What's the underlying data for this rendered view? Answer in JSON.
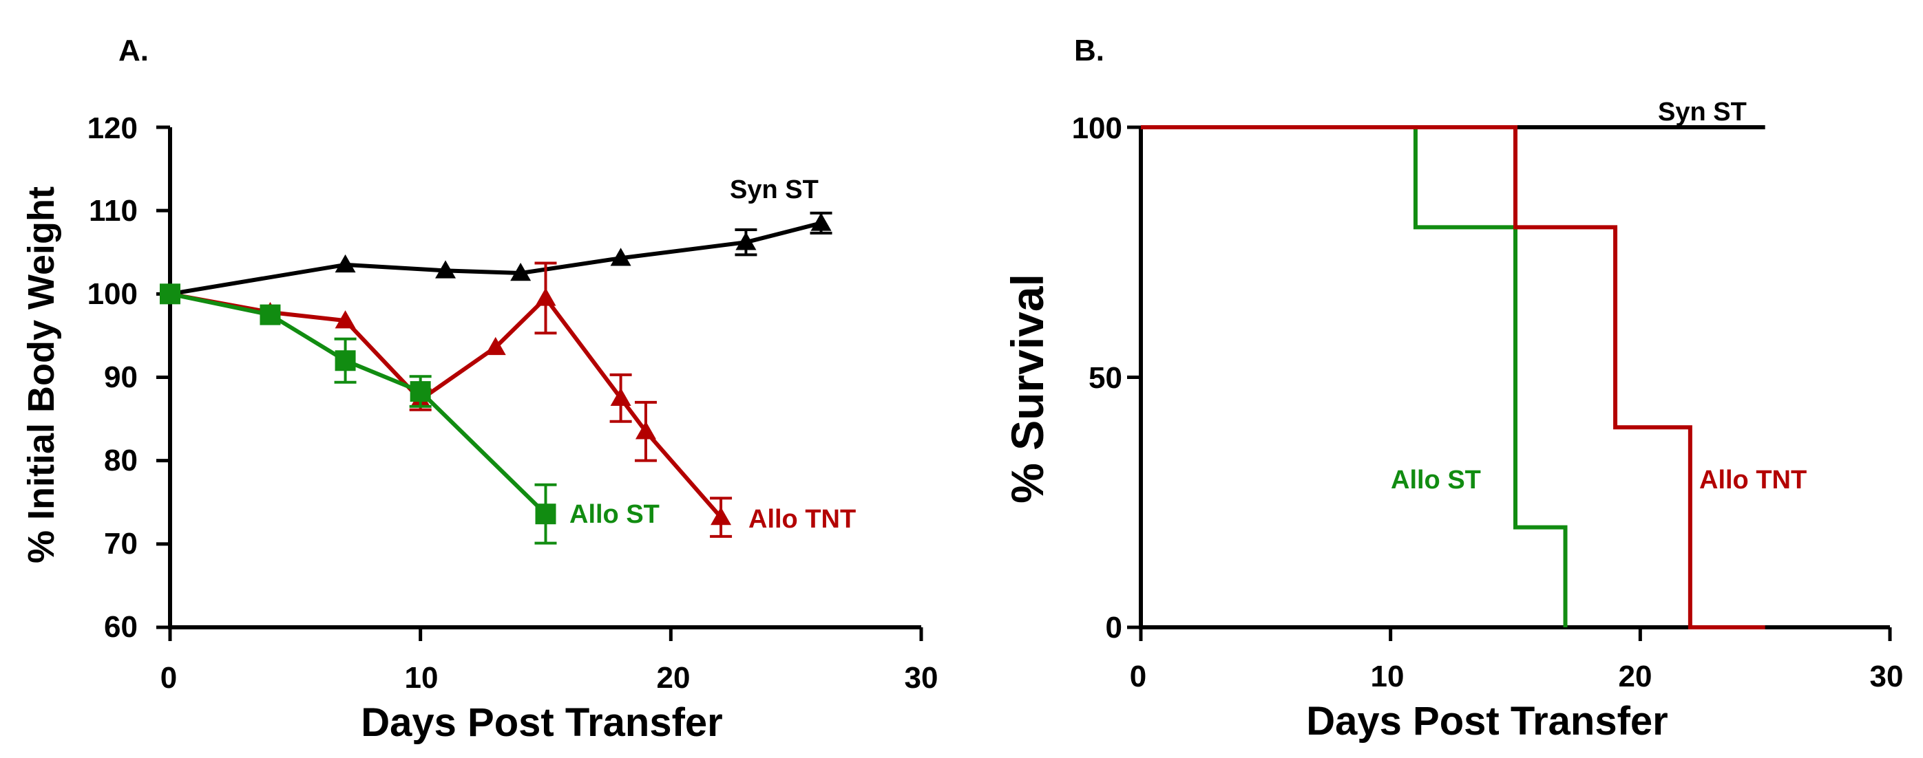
{
  "chart_data": [
    {
      "panel_label": "A.",
      "type": "line",
      "xlabel": "Days Post Transfer",
      "ylabel": "% Initial Body Weight",
      "xlim": [
        0,
        30
      ],
      "ylim": [
        60,
        120
      ],
      "x_ticks": [
        "0",
        "10",
        "20",
        "30"
      ],
      "y_ticks": [
        "60",
        "70",
        "80",
        "90",
        "100",
        "110",
        "120"
      ],
      "series": [
        {
          "name": "Syn ST",
          "color": "#000000",
          "marker": "triangle",
          "x": [
            0,
            7,
            11,
            14,
            18,
            23,
            26
          ],
          "y": [
            100,
            103.5,
            102.8,
            102.5,
            104.3,
            106.2,
            108.5
          ],
          "err": [
            0,
            0,
            0,
            0,
            0,
            1.5,
            1.2
          ]
        },
        {
          "name": "Allo TNT",
          "color": "#b30000",
          "marker": "triangle",
          "x": [
            0,
            4,
            7,
            10,
            13,
            15,
            18,
            19,
            22
          ],
          "y": [
            100,
            97.8,
            96.8,
            87.3,
            93.6,
            99.5,
            87.5,
            83.5,
            73.2
          ],
          "err": [
            0,
            0,
            0,
            1.2,
            0,
            4.2,
            2.8,
            3.5,
            2.3
          ]
        },
        {
          "name": "Allo ST",
          "color": "#118c11",
          "marker": "square",
          "x": [
            0,
            4,
            7,
            10,
            15
          ],
          "y": [
            100,
            97.5,
            92,
            88.3,
            73.6
          ],
          "err": [
            0,
            0,
            2.6,
            1.8,
            3.5
          ]
        }
      ]
    },
    {
      "panel_label": "B.",
      "type": "line",
      "xlabel": "Days Post Transfer",
      "ylabel": "% Survival",
      "xlim": [
        0,
        30
      ],
      "ylim": [
        0,
        100
      ],
      "x_ticks": [
        "0",
        "10",
        "20",
        "30"
      ],
      "y_ticks": [
        "0",
        "50",
        "100"
      ],
      "series": [
        {
          "name": "Syn ST",
          "color": "#000000",
          "x": [
            0,
            25
          ],
          "y": [
            100,
            100
          ]
        },
        {
          "name": "Allo ST",
          "color": "#118c11",
          "x": [
            0,
            11,
            15,
            17
          ],
          "y": [
            100,
            80,
            20,
            0
          ]
        },
        {
          "name": "Allo TNT",
          "color": "#b30000",
          "x": [
            0,
            15,
            19,
            22,
            25
          ],
          "y": [
            100,
            80,
            40,
            0,
            0
          ]
        }
      ]
    }
  ]
}
